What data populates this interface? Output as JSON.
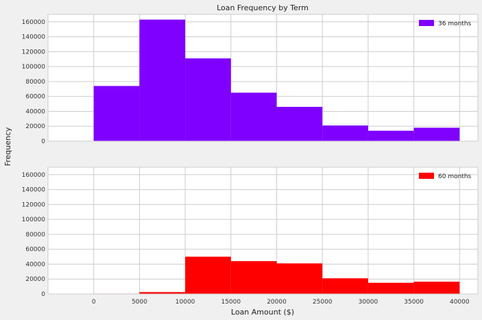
{
  "chart_data": {
    "type": "bar",
    "title": "Loan Frequency by Term",
    "xlabel": "Loan Amount ($)",
    "ylabel": "Frequency",
    "xlim": [
      -5000,
      42000
    ],
    "ylim": [
      0,
      170000
    ],
    "bins": [
      0,
      5000,
      10000,
      15000,
      20000,
      25000,
      30000,
      35000,
      40000
    ],
    "x_ticks": [
      0,
      5000,
      10000,
      15000,
      20000,
      25000,
      30000,
      35000,
      40000
    ],
    "y_ticks": [
      0,
      20000,
      40000,
      60000,
      80000,
      100000,
      120000,
      140000,
      160000
    ],
    "grid": true,
    "legend_position": "top-right",
    "panels": [
      {
        "name": "36 months",
        "color": "#7f00ff",
        "values": [
          74000,
          163000,
          111000,
          65000,
          46000,
          21000,
          14000,
          18000
        ]
      },
      {
        "name": "60 months",
        "color": "#ff0000",
        "values": [
          500,
          2500,
          50000,
          44000,
          41000,
          21000,
          15000,
          16500
        ]
      }
    ]
  }
}
